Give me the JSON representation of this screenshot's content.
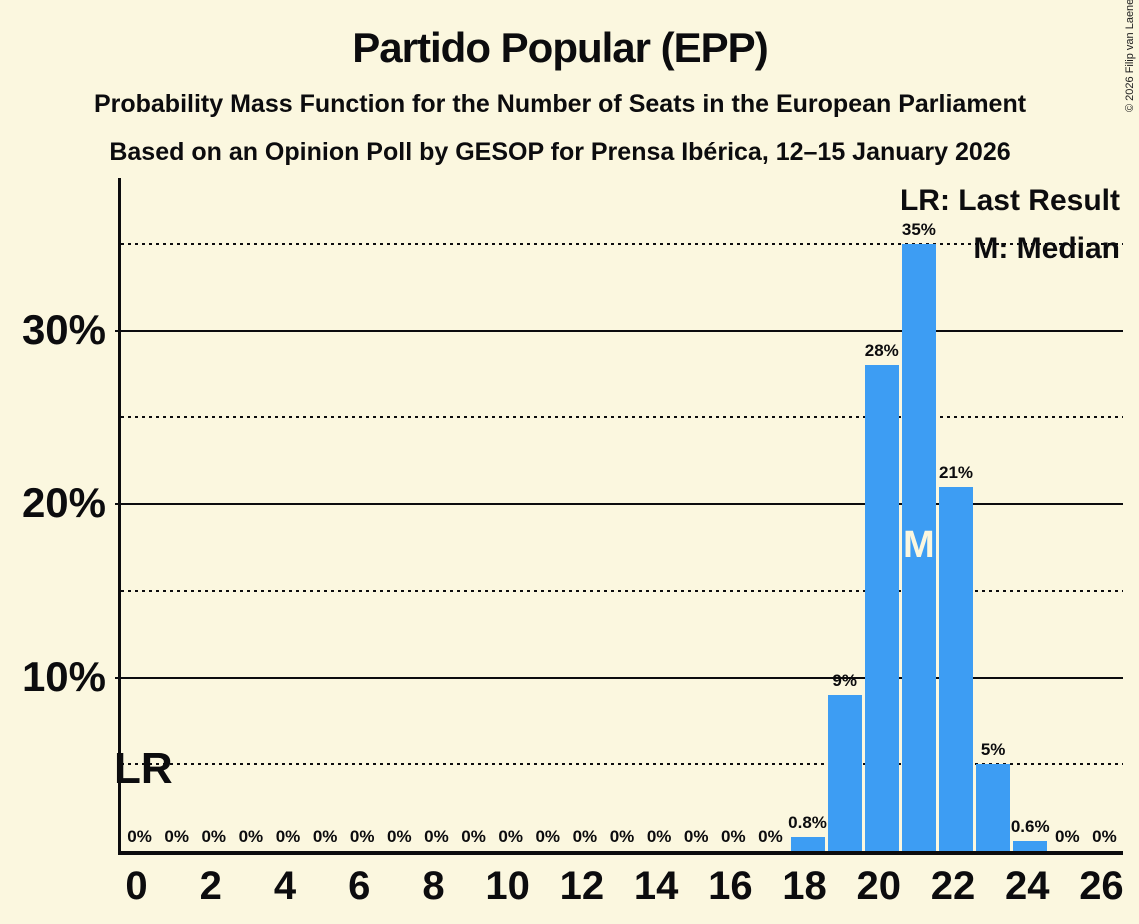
{
  "title": "Partido Popular (EPP)",
  "subtitle1": "Probability Mass Function for the Number of Seats in the European Parliament",
  "subtitle2": "Based on an Opinion Poll by GESOP for Prensa Ibérica, 12–15 January 2026",
  "copyright": "© 2026 Filip van Laenen",
  "legend": {
    "lr": "LR: Last Result",
    "m": "M: Median"
  },
  "annotations": {
    "lr_label": "LR",
    "median_label": "M"
  },
  "colors": {
    "background": "#FBF7DF",
    "bar": "#3D9DF3",
    "text": "#0c0c0e",
    "median_text": "#FBF7DF"
  },
  "chart_data": {
    "type": "bar",
    "title": "Partido Popular (EPP)",
    "x": [
      0,
      1,
      2,
      3,
      4,
      5,
      6,
      7,
      8,
      9,
      10,
      11,
      12,
      13,
      14,
      15,
      16,
      17,
      18,
      19,
      20,
      21,
      22,
      23,
      24,
      25,
      26
    ],
    "values": [
      0,
      0,
      0,
      0,
      0,
      0,
      0,
      0,
      0,
      0,
      0,
      0,
      0,
      0,
      0,
      0,
      0,
      0,
      0.8,
      9,
      28,
      35,
      21,
      5,
      0.6,
      0,
      0
    ],
    "bar_labels": [
      "0%",
      "0%",
      "0%",
      "0%",
      "0%",
      "0%",
      "0%",
      "0%",
      "0%",
      "0%",
      "0%",
      "0%",
      "0%",
      "0%",
      "0%",
      "0%",
      "0%",
      "0%",
      "0.8%",
      "9%",
      "28%",
      "35%",
      "21%",
      "5%",
      "0.6%",
      "0%",
      "0%"
    ],
    "x_tick_values": [
      0,
      2,
      4,
      6,
      8,
      10,
      12,
      14,
      16,
      18,
      20,
      22,
      24,
      26
    ],
    "x_tick_labels": [
      "0",
      "2",
      "4",
      "6",
      "8",
      "10",
      "12",
      "14",
      "16",
      "18",
      "20",
      "22",
      "24",
      "26"
    ],
    "y_tick_values": [
      10,
      20,
      30
    ],
    "y_tick_labels": [
      "10%",
      "20%",
      "30%"
    ],
    "solid_gridlines": [
      10,
      20,
      30
    ],
    "dotted_gridlines": [
      5,
      15,
      25,
      35
    ],
    "ylim": [
      0,
      38.8
    ],
    "grid": "horizontal",
    "legend_position": "top-right",
    "median_x": 21,
    "last_result_annotation_y_pct": 5
  }
}
